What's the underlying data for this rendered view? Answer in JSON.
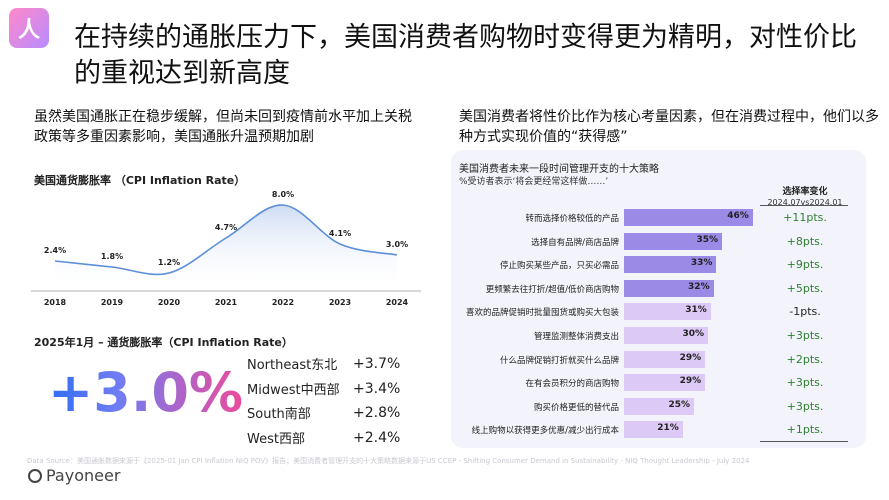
{
  "logo": {
    "glyph": "人"
  },
  "title": "在持续的通胀压力下，美国消费者购物时变得更为精明，对性价比的重视达到新高度",
  "left_subtitle": "虽然美国通胀正在稳步缓解，但尚未回到疫情前水平加上关税政策等多重因素影响，美国通胀升温预期加剧",
  "right_subtitle": "美国消费者将性价比作为核心考量因素，但在消费过程中，他们以多种方式实现价值的“获得感”",
  "chart_data": [
    {
      "type": "line",
      "title": "美国通货膨胀率 （CPI Inflation Rate）",
      "categories": [
        "2018",
        "2019",
        "2020",
        "2021",
        "2022",
        "2023",
        "2024"
      ],
      "values": [
        2.4,
        1.8,
        1.2,
        4.7,
        8.0,
        4.1,
        3.0
      ],
      "labels": [
        "2.4%",
        "1.8%",
        "1.2%",
        "4.7%",
        "8.0%",
        "4.1%",
        "3.0%"
      ],
      "xlabel": "",
      "ylabel": "",
      "ylim": [
        0,
        9
      ],
      "grid": false,
      "colors": {
        "line": "#5b8fd9",
        "fill_top": "#c9d9f3",
        "fill_bottom": "#ffffff"
      }
    },
    {
      "type": "bar",
      "title": "美国消费者未来一段时间管理开支的十大策略",
      "subtitle": "%受访者表示‘将会更经常这样做……’",
      "categories": [
        "转而选择价格较低的产品",
        "选择自有品牌/商店品牌",
        "停止购买某些产品，只买必需品",
        "更频繁去往打折/超值/低价商店购物",
        "喜欢的品牌促销时批量囤货或购买大包装",
        "管理监测整体消费支出",
        "什么品牌促销打折就买什么品牌",
        "在有会员积分的商店购物",
        "购买价格更低的替代品",
        "线上购物以获得更多优惠/减少出行成本"
      ],
      "values": [
        46,
        35,
        33,
        32,
        31,
        30,
        29,
        29,
        25,
        21
      ],
      "labels": [
        "46%",
        "35%",
        "33%",
        "32%",
        "31%",
        "30%",
        "29%",
        "29%",
        "25%",
        "21%"
      ],
      "change_header": "选择率变化",
      "change_period": "2024.07vs2024.01",
      "changes": [
        "+11pts.",
        "+8pts.",
        "+9pts.",
        "+5pts.",
        "-1pts.",
        "+3pts.",
        "+2pts.",
        "+3pts.",
        "+3pts.",
        "+1pts."
      ],
      "xlim": [
        0,
        50
      ],
      "colors": {
        "bar_strong": "#9b8ae6",
        "bar_light": "#dcc9f5",
        "change_positive": "#2e7d32",
        "change_negative": "#222222"
      }
    }
  ],
  "jan": {
    "title": "2025年1月 – 通货膨胀率（CPI Inflation Rate）",
    "big_value": "+3.0%",
    "regions": [
      {
        "name": "Northeast东北",
        "value": "+3.7%"
      },
      {
        "name": "Midwest中西部",
        "value": "+3.4%"
      },
      {
        "name": "South南部",
        "value": "+2.8%"
      },
      {
        "name": "West西部",
        "value": "+2.4%"
      }
    ]
  },
  "footnote": "Data Source：美国通胀数据来源于《2025-01 Jan CPI Inflation NIQ POV》报告；美国消费者管理开支的十大策略数据来源于US CCEP - Shifting Consumer Demand in Sustainability - NIQ Thought Leadership - July 2024",
  "brand": "Payoneer"
}
